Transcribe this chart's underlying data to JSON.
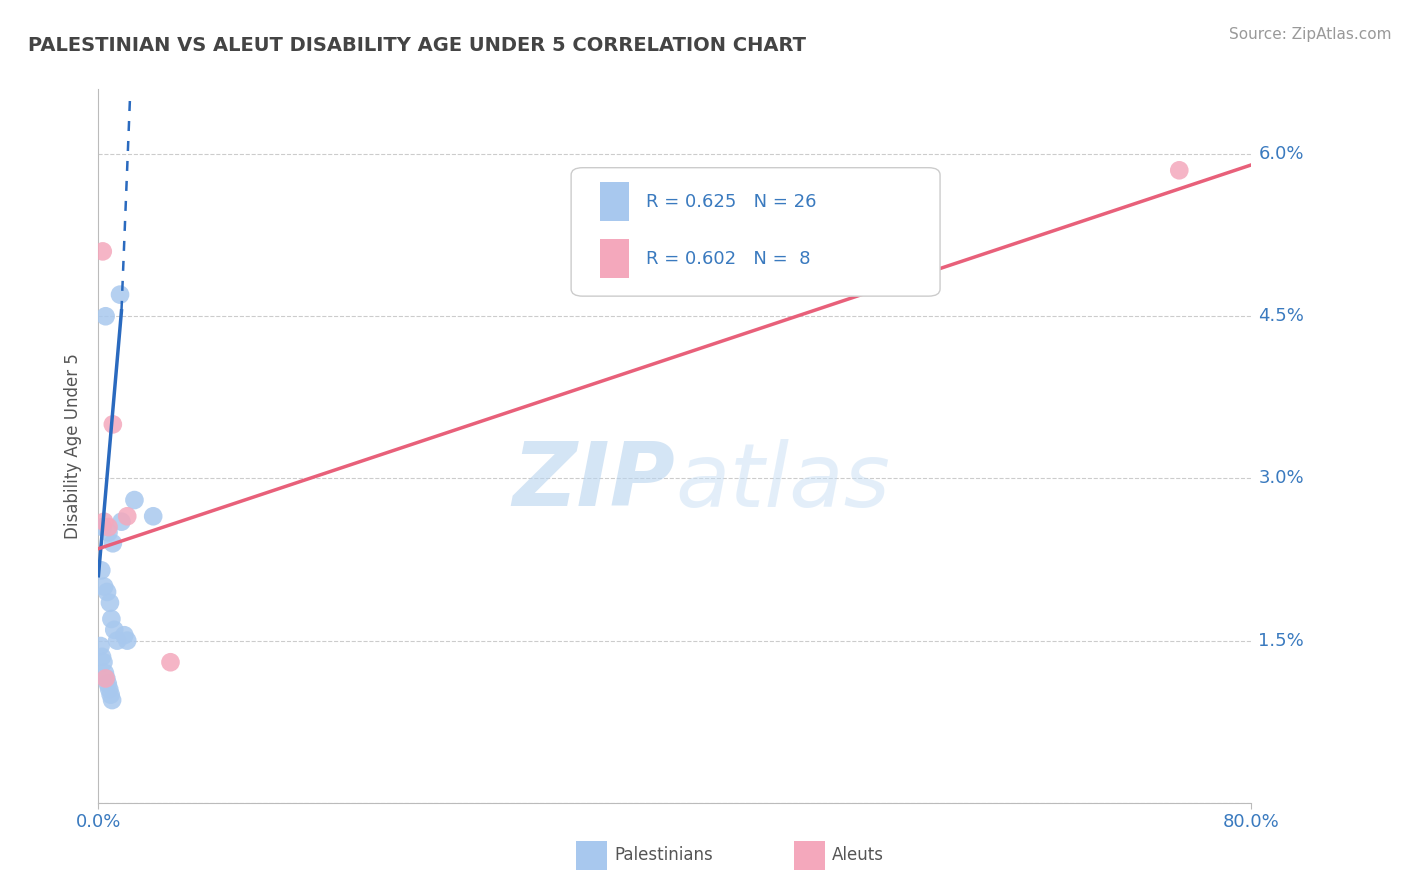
{
  "title": "PALESTINIAN VS ALEUT DISABILITY AGE UNDER 5 CORRELATION CHART",
  "source": "Source: ZipAtlas.com",
  "ylabel": "Disability Age Under 5",
  "xlim": [
    0.0,
    80.0
  ],
  "ylim": [
    0.0,
    6.6
  ],
  "yticks": [
    0.0,
    1.5,
    3.0,
    4.5,
    6.0
  ],
  "ytick_labels": [
    "",
    "1.5%",
    "3.0%",
    "4.5%",
    "6.0%"
  ],
  "xticks": [
    0.0,
    80.0
  ],
  "xtick_labels": [
    "0.0%",
    "80.0%"
  ],
  "palestinian_color": "#a8c8ee",
  "aleut_color": "#f4a8bc",
  "trendline_palestinian_color": "#2a6abf",
  "trendline_aleut_color": "#e8607a",
  "R_palestinian": 0.625,
  "N_palestinian": 26,
  "R_aleut": 0.602,
  "N_aleut": 8,
  "watermark_zip": "ZIP",
  "watermark_atlas": "atlas",
  "background_color": "#ffffff",
  "grid_color": "#cccccc",
  "palestinian_x": [
    0.5,
    1.5,
    2.5,
    0.3,
    0.7,
    1.0,
    0.2,
    0.4,
    0.6,
    0.8,
    0.9,
    1.1,
    1.3,
    0.15,
    0.25,
    0.35,
    0.45,
    0.55,
    0.65,
    0.75,
    0.85,
    0.95,
    3.8,
    1.6,
    1.8,
    2.0
  ],
  "palestinian_y": [
    4.5,
    4.7,
    2.8,
    2.55,
    2.5,
    2.4,
    2.15,
    2.0,
    1.95,
    1.85,
    1.7,
    1.6,
    1.5,
    1.45,
    1.35,
    1.3,
    1.2,
    1.15,
    1.1,
    1.05,
    1.0,
    0.95,
    2.65,
    2.6,
    1.55,
    1.5
  ],
  "aleut_x": [
    0.3,
    1.0,
    2.0,
    75.0,
    0.4,
    0.7,
    5.0,
    0.5
  ],
  "aleut_y": [
    5.1,
    3.5,
    2.65,
    5.85,
    2.6,
    2.55,
    1.3,
    1.15
  ],
  "pal_trend_x0": 0.0,
  "pal_trend_y0": 2.1,
  "pal_trend_x1": 1.6,
  "pal_trend_y1": 4.55,
  "pal_dash_x0": 1.6,
  "pal_dash_y0": 4.55,
  "pal_dash_x1": 2.2,
  "pal_dash_y1": 6.55,
  "ale_trend_x0": 0.0,
  "ale_trend_y0": 2.35,
  "ale_trend_x1": 80.0,
  "ale_trend_y1": 5.9
}
